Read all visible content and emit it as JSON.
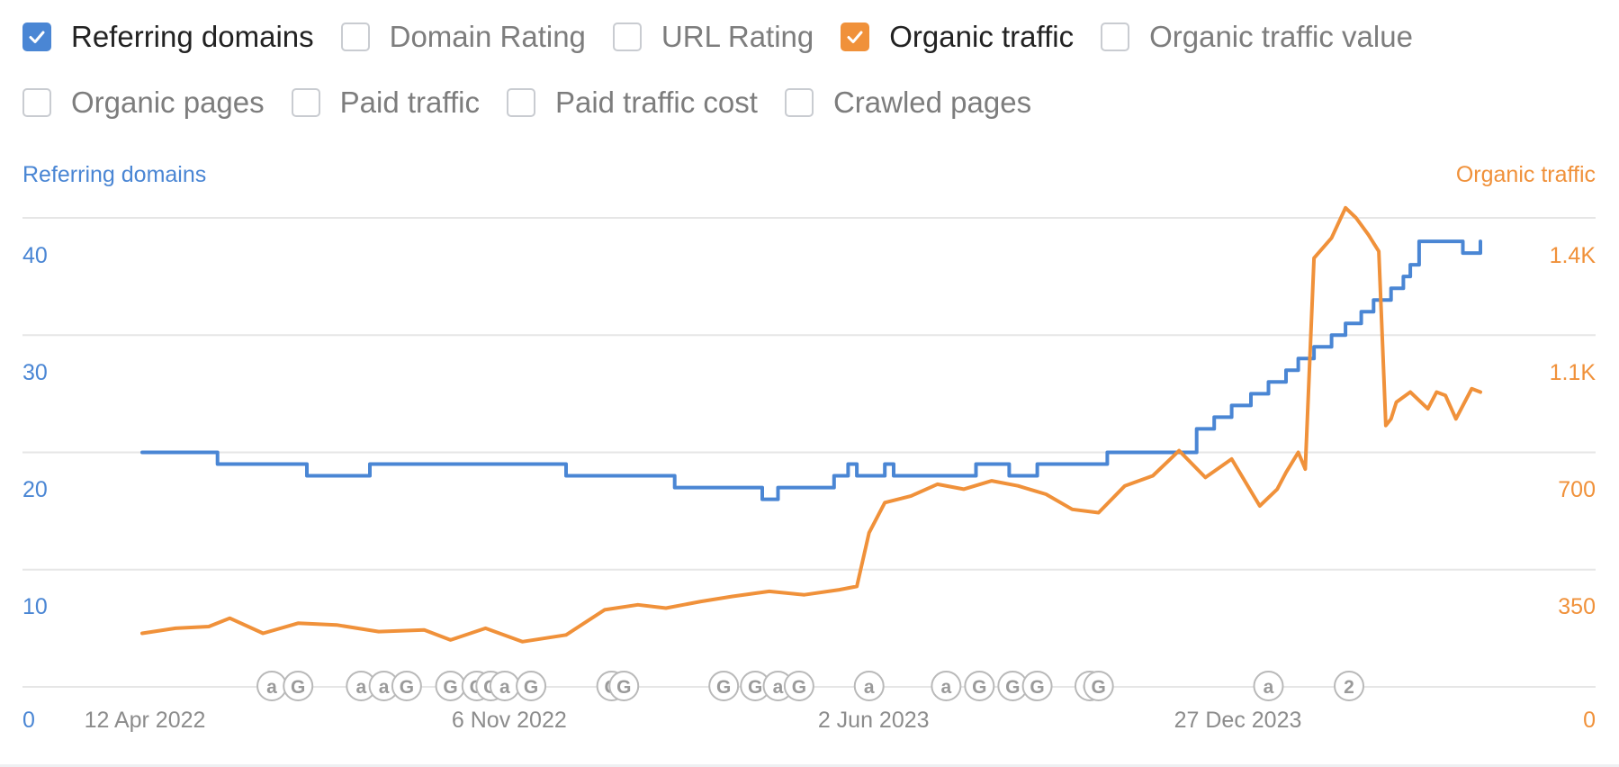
{
  "metrics": [
    {
      "label": "Referring domains",
      "checked": true,
      "color": "#4a86d4"
    },
    {
      "label": "Domain Rating",
      "checked": false
    },
    {
      "label": "URL Rating",
      "checked": false
    },
    {
      "label": "Organic traffic",
      "checked": true,
      "color": "#f0913a"
    },
    {
      "label": "Organic traffic value",
      "checked": false
    },
    {
      "label": "Organic pages",
      "checked": false
    },
    {
      "label": "Paid traffic",
      "checked": false
    },
    {
      "label": "Paid traffic cost",
      "checked": false
    },
    {
      "label": "Crawled pages",
      "checked": false
    }
  ],
  "chart_data": {
    "type": "line",
    "xlabel": "",
    "ylabel_left": "Referring domains",
    "ylabel_right": "Organic traffic",
    "x_ticks": [
      "12 Apr 2022",
      "6 Nov 2022",
      "2 Jun 2023",
      "27 Dec 2023"
    ],
    "y_left_ticks": [
      "0",
      "10",
      "20",
      "30",
      "40"
    ],
    "y_right_ticks": [
      "0",
      "350",
      "700",
      "1.1K",
      "1.4K"
    ],
    "y_left_range": [
      0,
      40
    ],
    "y_right_range": [
      0,
      1400
    ],
    "grid": true,
    "colors": {
      "left": "#4a86d4",
      "right": "#f0913a",
      "grid": "#e6e6e6",
      "axis_text_left": "#4a86d4",
      "axis_text_right": "#f0913a",
      "annotation": "#9a9a9a"
    },
    "series": [
      {
        "name": "Referring domains",
        "axis": "left",
        "x": [
          "2022-04-12",
          "2022-05-20",
          "2022-05-25",
          "2022-06-01",
          "2022-06-10",
          "2022-07-05",
          "2022-07-15",
          "2022-08-01",
          "2022-08-20",
          "2022-09-25",
          "2022-10-20",
          "2022-12-10",
          "2023-02-10",
          "2023-02-20",
          "2023-02-25",
          "2023-04-01",
          "2023-04-10",
          "2023-05-10",
          "2023-05-12",
          "2023-05-20",
          "2023-05-25",
          "2023-06-01",
          "2023-06-10",
          "2023-06-15",
          "2023-07-10",
          "2023-07-20",
          "2023-08-01",
          "2023-08-20",
          "2023-09-05",
          "2023-09-20",
          "2023-10-15",
          "2023-11-05",
          "2023-11-20",
          "2023-12-05",
          "2023-12-15",
          "2023-12-25",
          "2024-01-05",
          "2024-01-15",
          "2024-01-25",
          "2024-02-01",
          "2024-02-10",
          "2024-02-20",
          "2024-02-28",
          "2024-03-08",
          "2024-03-15",
          "2024-03-25",
          "2024-04-01",
          "2024-04-05",
          "2024-04-10",
          "2024-04-20",
          "2024-04-28",
          "2024-05-05",
          "2024-05-15"
        ],
        "values": [
          20,
          20,
          19,
          19,
          19,
          19,
          18,
          18,
          19,
          19,
          19,
          18,
          17,
          17,
          17,
          16,
          17,
          17,
          18,
          19,
          18,
          18,
          19,
          18,
          18,
          18,
          19,
          18,
          19,
          19,
          20,
          20,
          20,
          22,
          23,
          24,
          25,
          26,
          27,
          28,
          29,
          30,
          31,
          32,
          33,
          34,
          35,
          36,
          38,
          38,
          38,
          37,
          38
        ]
      },
      {
        "name": "Organic traffic",
        "axis": "right",
        "x": [
          "2022-04-12",
          "2022-05-01",
          "2022-05-20",
          "2022-06-01",
          "2022-06-20",
          "2022-07-10",
          "2022-08-01",
          "2022-08-25",
          "2022-09-20",
          "2022-10-05",
          "2022-10-25",
          "2022-11-15",
          "2022-12-10",
          "2023-01-01",
          "2023-01-20",
          "2023-02-05",
          "2023-02-25",
          "2023-03-15",
          "2023-04-05",
          "2023-04-25",
          "2023-05-15",
          "2023-05-25",
          "2023-06-01",
          "2023-06-10",
          "2023-06-25",
          "2023-07-10",
          "2023-07-25",
          "2023-08-10",
          "2023-08-25",
          "2023-09-10",
          "2023-09-25",
          "2023-10-10",
          "2023-10-25",
          "2023-11-10",
          "2023-11-25",
          "2023-12-10",
          "2023-12-25",
          "2024-01-10",
          "2024-01-20",
          "2024-01-25",
          "2024-02-01",
          "2024-02-05",
          "2024-02-10",
          "2024-02-20",
          "2024-02-28",
          "2024-03-05",
          "2024-03-12",
          "2024-03-18",
          "2024-03-22",
          "2024-03-25",
          "2024-03-28",
          "2024-04-05",
          "2024-04-15",
          "2024-04-20",
          "2024-04-25",
          "2024-05-01",
          "2024-05-10",
          "2024-05-15"
        ],
        "values": [
          160,
          175,
          180,
          205,
          160,
          190,
          185,
          165,
          170,
          140,
          175,
          135,
          155,
          230,
          245,
          235,
          255,
          270,
          285,
          275,
          290,
          300,
          460,
          550,
          570,
          605,
          590,
          615,
          600,
          575,
          530,
          520,
          600,
          630,
          705,
          625,
          680,
          540,
          590,
          640,
          700,
          650,
          1280,
          1340,
          1430,
          1400,
          1350,
          1300,
          780,
          800,
          850,
          880,
          830,
          880,
          870,
          800,
          890,
          880
        ]
      }
    ],
    "annotations": [
      {
        "date": "2022-06-25",
        "label": "a"
      },
      {
        "date": "2022-07-10",
        "label": "G"
      },
      {
        "date": "2022-08-15",
        "label": "a"
      },
      {
        "date": "2022-08-28",
        "label": "a"
      },
      {
        "date": "2022-09-10",
        "label": "G"
      },
      {
        "date": "2022-10-05",
        "label": "G"
      },
      {
        "date": "2022-10-20",
        "label": "G"
      },
      {
        "date": "2022-10-28",
        "label": "G"
      },
      {
        "date": "2022-11-05",
        "label": "a"
      },
      {
        "date": "2022-11-20",
        "label": "G"
      },
      {
        "date": "2023-01-05",
        "label": "G"
      },
      {
        "date": "2023-01-12",
        "label": "G"
      },
      {
        "date": "2023-03-10",
        "label": "G"
      },
      {
        "date": "2023-03-28",
        "label": "G"
      },
      {
        "date": "2023-04-10",
        "label": "a"
      },
      {
        "date": "2023-04-22",
        "label": "G"
      },
      {
        "date": "2023-06-01",
        "label": "a"
      },
      {
        "date": "2023-07-15",
        "label": "a"
      },
      {
        "date": "2023-08-03",
        "label": "G"
      },
      {
        "date": "2023-08-22",
        "label": "G"
      },
      {
        "date": "2023-09-05",
        "label": "G"
      },
      {
        "date": "2023-10-05",
        "label": "G"
      },
      {
        "date": "2023-10-10",
        "label": "G"
      },
      {
        "date": "2024-01-15",
        "label": "a"
      },
      {
        "date": "2024-03-01",
        "label": "2"
      }
    ]
  }
}
